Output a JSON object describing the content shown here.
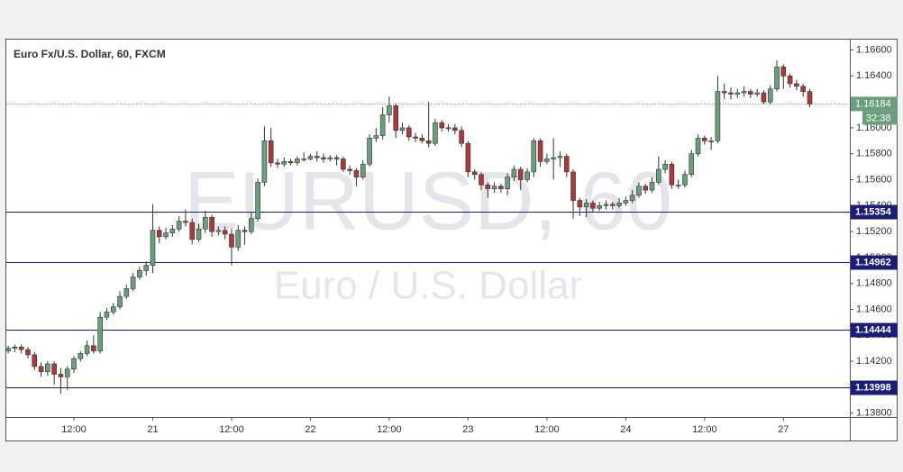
{
  "chart_data": {
    "type": "candlestick",
    "title": "Euro Fx/U.S. Dollar, 60, FXCM",
    "watermark": "EURUSD, 60",
    "watermark_subtitle": "Euro / U.S. Dollar",
    "categories": [
      null,
      null,
      null,
      null,
      null,
      null,
      null,
      null,
      null,
      null,
      "12:00",
      null,
      null,
      null,
      null,
      null,
      null,
      null,
      null,
      null,
      null,
      null,
      "21",
      null,
      null,
      null,
      null,
      null,
      null,
      null,
      null,
      null,
      null,
      null,
      "12:00",
      null,
      null,
      null,
      null,
      null,
      null,
      null,
      null,
      null,
      null,
      null,
      "22",
      null,
      null,
      null,
      null,
      null,
      null,
      null,
      null,
      null,
      null,
      null,
      "12:00",
      null,
      null,
      null,
      null,
      null,
      null,
      null,
      null,
      null,
      null,
      null,
      "23",
      null,
      null,
      null,
      null,
      null,
      null,
      null,
      null,
      null,
      null,
      null,
      "12:00",
      null,
      null,
      null,
      null,
      null,
      null,
      null,
      null,
      null,
      null,
      null,
      "24",
      null,
      null,
      null,
      null,
      null,
      null,
      null,
      null,
      null,
      null,
      null,
      "12:00",
      null,
      null,
      null,
      null,
      null,
      null,
      null,
      null,
      null,
      null,
      null,
      "27",
      null,
      null,
      null,
      null
    ],
    "open": [
      1.1428,
      1.143,
      1.1431,
      1.1429,
      1.1425,
      1.1416,
      1.1412,
      1.1418,
      1.141,
      1.1408,
      1.1414,
      1.1422,
      1.1426,
      1.1432,
      1.1428,
      1.1454,
      1.1458,
      1.1462,
      1.147,
      1.1476,
      1.1485,
      1.149,
      1.1494,
      1.1521,
      1.1516,
      1.1519,
      1.1522,
      1.1528,
      1.1527,
      1.1514,
      1.1522,
      1.1531,
      1.152,
      1.1521,
      1.1518,
      1.1508,
      1.1521,
      1.152,
      1.153,
      1.1558,
      1.159,
      1.1573,
      1.1572,
      1.1574,
      1.1573,
      1.1576,
      1.1576,
      1.1578,
      1.1577,
      1.1576,
      1.1577,
      1.1576,
      1.1568,
      1.1567,
      1.1562,
      1.1572,
      1.1592,
      1.1594,
      1.161,
      1.1617,
      1.1598,
      1.16,
      1.1593,
      1.1592,
      1.159,
      1.1588,
      1.1604,
      1.16,
      1.16,
      1.1598,
      1.1588,
      1.1566,
      1.1564,
      1.1556,
      1.1553,
      1.1555,
      1.1553,
      1.1562,
      1.1568,
      1.156,
      1.1566,
      1.159,
      1.1574,
      1.1576,
      1.1577,
      1.1578,
      1.1566,
      1.1544,
      1.1539,
      1.1542,
      1.1538,
      1.154,
      1.1541,
      1.154,
      1.1542,
      1.1544,
      1.1548,
      1.1555,
      1.1552,
      1.1558,
      1.1568,
      1.1572,
      1.1556,
      1.1556,
      1.1564,
      1.158,
      1.1592,
      1.159,
      1.159,
      1.1628,
      1.1627,
      1.1626,
      1.1627,
      1.1628,
      1.1626,
      1.1627,
      1.162,
      1.163,
      1.1647,
      1.164,
      1.1634,
      1.1632,
      1.1628
    ],
    "high": [
      1.1432,
      1.1433,
      1.1433,
      1.1431,
      1.1427,
      1.1419,
      1.142,
      1.142,
      1.1415,
      1.1416,
      1.1424,
      1.1428,
      1.1436,
      1.144,
      1.1458,
      1.1461,
      1.1465,
      1.1474,
      1.1479,
      1.1488,
      1.1493,
      1.1497,
      1.1541,
      1.1524,
      1.1523,
      1.1525,
      1.1532,
      1.1537,
      1.153,
      1.1526,
      1.1536,
      1.1533,
      1.1524,
      1.1524,
      1.1522,
      1.1525,
      1.1524,
      1.1535,
      1.1561,
      1.1601,
      1.16,
      1.1576,
      1.1577,
      1.1576,
      1.1578,
      1.1581,
      1.158,
      1.1582,
      1.158,
      1.1579,
      1.1579,
      1.1578,
      1.1571,
      1.1569,
      1.1575,
      1.1595,
      1.16,
      1.1616,
      1.1624,
      1.1619,
      1.1604,
      1.1602,
      1.1596,
      1.1595,
      1.162,
      1.1607,
      1.1606,
      1.1603,
      1.1603,
      1.1601,
      1.159,
      1.1568,
      1.1566,
      1.1558,
      1.1558,
      1.1557,
      1.1565,
      1.1571,
      1.157,
      1.1569,
      1.1592,
      1.1592,
      1.158,
      1.1592,
      1.1582,
      1.158,
      1.1568,
      1.1546,
      1.1545,
      1.1544,
      1.1543,
      1.1544,
      1.1543,
      1.1546,
      1.1547,
      1.1552,
      1.1558,
      1.1557,
      1.1562,
      1.1578,
      1.1575,
      1.1574,
      1.156,
      1.1567,
      1.1583,
      1.1595,
      1.1594,
      1.1593,
      1.164,
      1.1634,
      1.1631,
      1.163,
      1.1632,
      1.163,
      1.163,
      1.1629,
      1.1633,
      1.1652,
      1.1649,
      1.1642,
      1.1637,
      1.1634,
      1.163
    ],
    "low": [
      1.1426,
      1.1427,
      1.1426,
      1.1422,
      1.1413,
      1.1408,
      1.1409,
      1.1402,
      1.1395,
      1.1398,
      1.1411,
      1.142,
      1.1424,
      1.1426,
      1.1426,
      1.1452,
      1.1456,
      1.146,
      1.1468,
      1.1474,
      1.1483,
      1.1486,
      1.1488,
      1.1511,
      1.1514,
      1.1516,
      1.152,
      1.1524,
      1.151,
      1.1512,
      1.1519,
      1.1516,
      1.1517,
      1.1514,
      1.1494,
      1.1505,
      1.151,
      1.1518,
      1.1528,
      1.1555,
      1.157,
      1.1569,
      1.157,
      1.1571,
      1.1571,
      1.1574,
      1.1575,
      1.1574,
      1.1573,
      1.1574,
      1.1571,
      1.1566,
      1.1564,
      1.1555,
      1.156,
      1.157,
      1.1589,
      1.1591,
      1.1604,
      1.1592,
      1.1595,
      1.159,
      1.1589,
      1.1588,
      1.1585,
      1.1586,
      1.1597,
      1.1597,
      1.1595,
      1.1585,
      1.1562,
      1.156,
      1.1552,
      1.1546,
      1.155,
      1.155,
      1.1548,
      1.1559,
      1.1552,
      1.1558,
      1.1562,
      1.157,
      1.1572,
      1.156,
      1.157,
      1.1562,
      1.153,
      1.1532,
      1.1531,
      1.1535,
      1.1536,
      1.1537,
      1.1537,
      1.1538,
      1.154,
      1.1542,
      1.1546,
      1.1549,
      1.155,
      1.1556,
      1.1565,
      1.1553,
      1.1553,
      1.1554,
      1.1562,
      1.1578,
      1.1587,
      1.1583,
      1.1588,
      1.1622,
      1.1622,
      1.1623,
      1.1624,
      1.1623,
      1.1624,
      1.1618,
      1.1618,
      1.1628,
      1.163,
      1.1631,
      1.1629,
      1.1624,
      1.1616
    ],
    "close": [
      1.143,
      1.1431,
      1.1429,
      1.1425,
      1.1416,
      1.1412,
      1.1418,
      1.141,
      1.1408,
      1.1414,
      1.1422,
      1.1426,
      1.1432,
      1.1428,
      1.1454,
      1.1458,
      1.1462,
      1.147,
      1.1476,
      1.1485,
      1.149,
      1.1494,
      1.1521,
      1.1516,
      1.1519,
      1.1522,
      1.1528,
      1.1527,
      1.1514,
      1.1522,
      1.1531,
      1.152,
      1.1521,
      1.1518,
      1.1508,
      1.1521,
      1.152,
      1.153,
      1.1558,
      1.159,
      1.1573,
      1.1572,
      1.1574,
      1.1573,
      1.1576,
      1.1576,
      1.1578,
      1.1577,
      1.1576,
      1.1577,
      1.1576,
      1.1568,
      1.1567,
      1.1562,
      1.1572,
      1.1592,
      1.1594,
      1.161,
      1.1617,
      1.1598,
      1.16,
      1.1593,
      1.1592,
      1.159,
      1.1588,
      1.1604,
      1.16,
      1.16,
      1.1598,
      1.1588,
      1.1566,
      1.1564,
      1.1556,
      1.1553,
      1.1555,
      1.1553,
      1.1562,
      1.1568,
      1.156,
      1.1566,
      1.159,
      1.1574,
      1.1576,
      1.1577,
      1.1578,
      1.1566,
      1.1544,
      1.1539,
      1.1542,
      1.1538,
      1.154,
      1.1541,
      1.154,
      1.1542,
      1.1544,
      1.1548,
      1.1555,
      1.1552,
      1.1558,
      1.1568,
      1.1572,
      1.1556,
      1.1556,
      1.1564,
      1.158,
      1.1592,
      1.159,
      1.159,
      1.1628,
      1.1627,
      1.1626,
      1.1627,
      1.1628,
      1.1626,
      1.1627,
      1.162,
      1.163,
      1.1647,
      1.164,
      1.1634,
      1.1632,
      1.1628,
      1.16184
    ],
    "up_color": "#6a9e7c",
    "down_color": "#a83a3a",
    "ylim": [
      1.1377,
      1.1668
    ],
    "yticks": [
      {
        "value": 1.138,
        "label": "1.13800"
      },
      {
        "value": 1.14,
        "label": "1.14000"
      },
      {
        "value": 1.142,
        "label": "1.14200"
      },
      {
        "value": 1.144,
        "label": "1.14400"
      },
      {
        "value": 1.146,
        "label": "1.14600"
      },
      {
        "value": 1.148,
        "label": "1.14800"
      },
      {
        "value": 1.15,
        "label": "1.15000"
      },
      {
        "value": 1.152,
        "label": "1.15200"
      },
      {
        "value": 1.154,
        "label": "1.15400"
      },
      {
        "value": 1.156,
        "label": "1.15600"
      },
      {
        "value": 1.158,
        "label": "1.15800"
      },
      {
        "value": 1.16,
        "label": "1.16000"
      },
      {
        "value": 1.162,
        "label": "1.16200"
      },
      {
        "value": 1.164,
        "label": "1.16400"
      },
      {
        "value": 1.166,
        "label": "1.16600"
      }
    ],
    "levels": [
      1.15354,
      1.14962,
      1.14444,
      1.13998
    ],
    "level_color": "#1c1c78",
    "last_price": 1.16184,
    "countdown": "32:38"
  }
}
